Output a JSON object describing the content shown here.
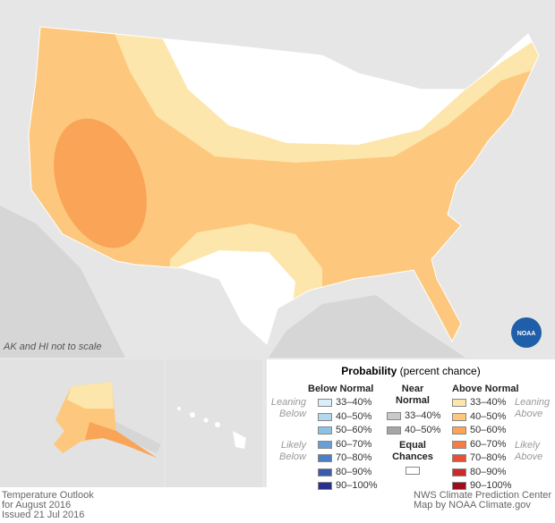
{
  "map_note": "AK and HI not to scale",
  "legend": {
    "title": "Probability",
    "subtitle": "(percent chance)",
    "below": {
      "heading": "Below Normal",
      "leaning": "Leaning Below",
      "likely": "Likely Below",
      "items": [
        {
          "label": "33–40%",
          "color": "#d9eefa"
        },
        {
          "label": "40–50%",
          "color": "#b3d8ee"
        },
        {
          "label": "50–60%",
          "color": "#8ec1e3"
        },
        {
          "label": "60–70%",
          "color": "#6a9fd3"
        },
        {
          "label": "70–80%",
          "color": "#4d7fc2"
        },
        {
          "label": "80–90%",
          "color": "#3d5bae"
        },
        {
          "label": "90–100%",
          "color": "#2a2f8f"
        }
      ]
    },
    "near": {
      "heading": "Near Normal",
      "items": [
        {
          "label": "33–40%",
          "color": "#c9c9c9"
        },
        {
          "label": "40–50%",
          "color": "#a6a6a6"
        }
      ],
      "equal": "Equal Chances"
    },
    "above": {
      "heading": "Above Normal",
      "leaning": "Leaning Above",
      "likely": "Likely Above",
      "items": [
        {
          "label": "33–40%",
          "color": "#fde6ab"
        },
        {
          "label": "40–50%",
          "color": "#fdc87d"
        },
        {
          "label": "50–60%",
          "color": "#f9a457"
        },
        {
          "label": "60–70%",
          "color": "#f47d44"
        },
        {
          "label": "70–80%",
          "color": "#e55132"
        },
        {
          "label": "80–90%",
          "color": "#cc2a29"
        },
        {
          "label": "90–100%",
          "color": "#a00c1c"
        }
      ]
    }
  },
  "footer": {
    "left": [
      "Temperature Outlook",
      "for August 2016",
      "Issued 21 Jul 2016"
    ],
    "right": [
      "NWS Climate Prediction Center",
      "Map by NOAA Climate.gov"
    ]
  },
  "logo": "NOAA"
}
